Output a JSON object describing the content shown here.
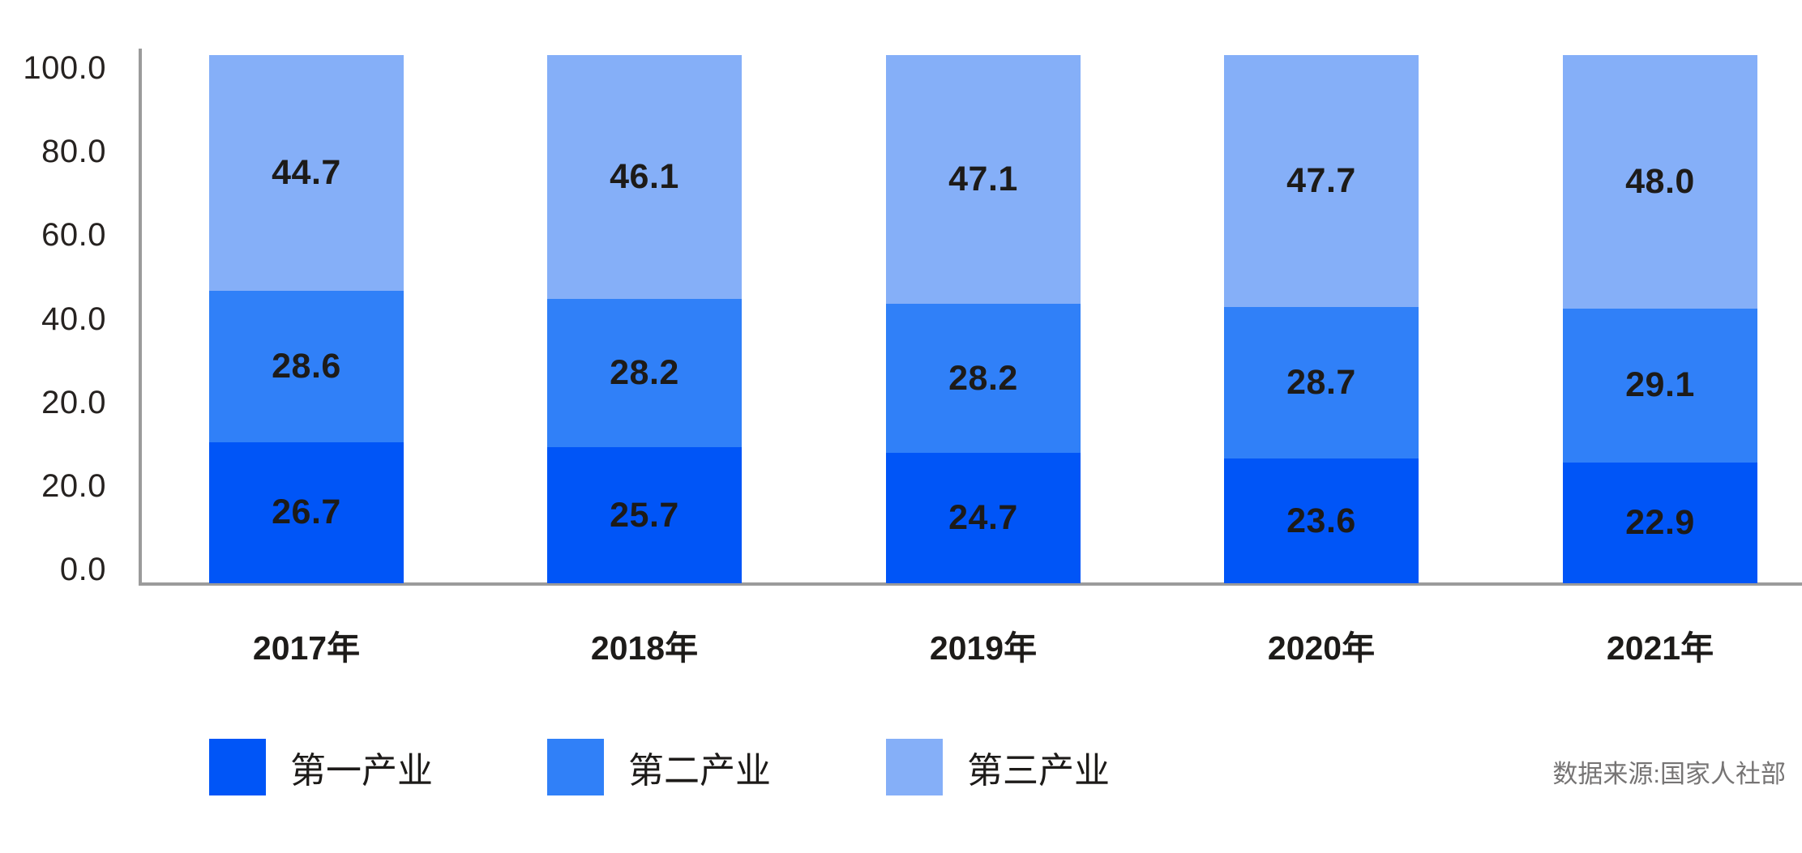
{
  "chart_data": {
    "type": "bar",
    "stacked": true,
    "categories": [
      "2017年",
      "2018年",
      "2019年",
      "2020年",
      "2021年"
    ],
    "series": [
      {
        "name": "第一产业",
        "color": "#0055F7",
        "values": [
          26.7,
          25.7,
          24.7,
          23.6,
          22.9
        ],
        "labels": [
          "26.7",
          "25.7",
          "24.7",
          "23.6",
          "22.9"
        ]
      },
      {
        "name": "第二产业",
        "color": "#3080F8",
        "values": [
          28.6,
          28.2,
          28.2,
          28.7,
          29.1
        ],
        "labels": [
          "28.6",
          "28.2",
          "28.2",
          "28.7",
          "29.1"
        ]
      },
      {
        "name": "第三产业",
        "color": "#85AFF8",
        "values": [
          44.7,
          46.1,
          47.1,
          47.7,
          48.0
        ],
        "labels": [
          "44.7",
          "46.1",
          "47.1",
          "47.7",
          "48.0"
        ]
      }
    ],
    "y_axis_ticks": [
      "100.0",
      "80.0",
      "60.0",
      "40.0",
      "20.0",
      "20.0",
      "0.0"
    ],
    "ylim": [
      0,
      100
    ],
    "grid": false,
    "legend_position": "bottom",
    "title": "",
    "xlabel": "",
    "ylabel": "",
    "source_note": "数据来源:国家人社部"
  },
  "layout_colors": {
    "axis": "#9b9b9b",
    "tick_text": "#262220",
    "value_text": "#1d1b19",
    "source_text": "#767474"
  }
}
